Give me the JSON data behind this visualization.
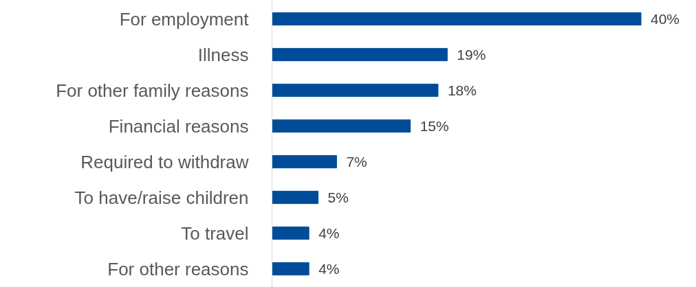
{
  "chart_data": {
    "type": "bar",
    "orientation": "horizontal",
    "categories": [
      "For employment",
      "Illness",
      "For other family reasons",
      "Financial reasons",
      "Required to withdraw",
      "To have/raise children",
      "To travel",
      "For other reasons"
    ],
    "values": [
      40,
      19,
      18,
      15,
      7,
      5,
      4,
      4
    ],
    "value_labels": [
      "40%",
      "19%",
      "18%",
      "15%",
      "7%",
      "5%",
      "4%",
      "4%"
    ],
    "color": "#004c99",
    "grid": false,
    "tick_labels": "y"
  }
}
